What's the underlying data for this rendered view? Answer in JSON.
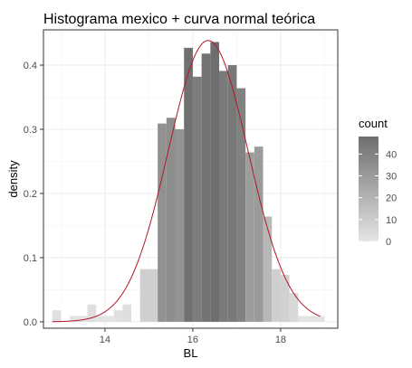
{
  "chart_data": {
    "type": "histogram",
    "title": "Histograma mexico + curva normal teórica",
    "xlabel": "BL",
    "ylabel": "density",
    "xlim": [
      12.6,
      19.3
    ],
    "ylim": [
      -0.01,
      0.455
    ],
    "x_ticks": [
      14,
      16,
      18
    ],
    "y_ticks": [
      0.0,
      0.1,
      0.2,
      0.3,
      0.4
    ],
    "y_tick_labels": [
      "0.0",
      "0.1",
      "0.2",
      "0.3",
      "0.4"
    ],
    "x_tick_labels": [
      "14",
      "16",
      "18"
    ],
    "grid": true,
    "bin_width": 0.2,
    "bins": [
      {
        "x": 12.9,
        "density": 0.018,
        "count": 2
      },
      {
        "x": 13.1,
        "density": 0.0,
        "count": 0
      },
      {
        "x": 13.3,
        "density": 0.009,
        "count": 1
      },
      {
        "x": 13.5,
        "density": 0.009,
        "count": 1
      },
      {
        "x": 13.7,
        "density": 0.027,
        "count": 3
      },
      {
        "x": 13.9,
        "density": 0.009,
        "count": 1
      },
      {
        "x": 14.1,
        "density": 0.009,
        "count": 1
      },
      {
        "x": 14.3,
        "density": 0.018,
        "count": 2
      },
      {
        "x": 14.5,
        "density": 0.027,
        "count": 3
      },
      {
        "x": 14.7,
        "density": 0.0,
        "count": 0
      },
      {
        "x": 14.9,
        "density": 0.082,
        "count": 9
      },
      {
        "x": 15.1,
        "density": 0.082,
        "count": 9
      },
      {
        "x": 15.3,
        "density": 0.309,
        "count": 34
      },
      {
        "x": 15.5,
        "density": 0.318,
        "count": 35
      },
      {
        "x": 15.7,
        "density": 0.3,
        "count": 33
      },
      {
        "x": 15.9,
        "density": 0.427,
        "count": 47
      },
      {
        "x": 16.1,
        "density": 0.382,
        "count": 42
      },
      {
        "x": 16.3,
        "density": 0.418,
        "count": 46
      },
      {
        "x": 16.5,
        "density": 0.436,
        "count": 48
      },
      {
        "x": 16.7,
        "density": 0.391,
        "count": 43
      },
      {
        "x": 16.9,
        "density": 0.4,
        "count": 44
      },
      {
        "x": 17.1,
        "density": 0.364,
        "count": 40
      },
      {
        "x": 17.3,
        "density": 0.264,
        "count": 29
      },
      {
        "x": 17.5,
        "density": 0.273,
        "count": 30
      },
      {
        "x": 17.7,
        "density": 0.164,
        "count": 18
      },
      {
        "x": 17.9,
        "density": 0.082,
        "count": 9
      },
      {
        "x": 18.1,
        "density": 0.073,
        "count": 8
      },
      {
        "x": 18.3,
        "density": 0.045,
        "count": 5
      },
      {
        "x": 18.5,
        "density": 0.009,
        "count": 1
      },
      {
        "x": 18.7,
        "density": 0.009,
        "count": 1
      },
      {
        "x": 18.9,
        "density": 0.009,
        "count": 1
      }
    ],
    "normal_curve": {
      "mean": 16.35,
      "sd": 0.91,
      "color": "#b2182b"
    },
    "legend": {
      "title": "count",
      "position": "right",
      "min": 0,
      "max": 48,
      "breaks": [
        0,
        10,
        20,
        30,
        40
      ],
      "break_labels": [
        "0",
        "10",
        "20",
        "30",
        "40"
      ],
      "low_color": "#e5e5e5",
      "high_color": "#6e6e6e"
    },
    "colors": {
      "panel_border": "#333333",
      "grid_major": "#ebebeb",
      "grid_minor": "#f5f5f5"
    }
  }
}
